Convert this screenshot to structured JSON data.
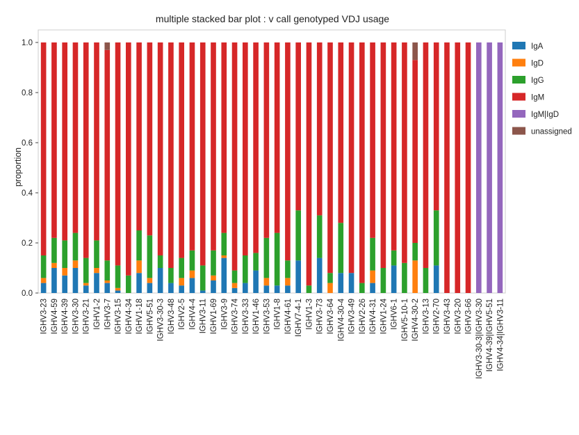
{
  "chart_data": {
    "type": "bar",
    "stacked": true,
    "title": "multiple stacked bar plot : v call genotyped VDJ usage",
    "xlabel": "",
    "ylabel": "proportion",
    "ylim": [
      0,
      1.05
    ],
    "yticks": [
      "0.0",
      "0.2",
      "0.4",
      "0.6",
      "0.8",
      "1.0"
    ],
    "grid": false,
    "legend_position": "right",
    "categories": [
      "IGHV3-23",
      "IGHV4-59",
      "IGHV4-39",
      "IGHV3-30",
      "IGHV3-21",
      "IGHV1-2",
      "IGHV3-7",
      "IGHV3-15",
      "IGHV4-34",
      "IGHV1-18",
      "IGHV5-51",
      "IGHV3-30-3",
      "IGHV3-48",
      "IGHV2-5",
      "IGHV4-4",
      "IGHV3-11",
      "IGHV1-69",
      "IGHV3-9",
      "IGHV3-74",
      "IGHV3-33",
      "IGHV1-46",
      "IGHV3-53",
      "IGHV1-8",
      "IGHV4-61",
      "IGHV7-4-1",
      "IGHV1-3",
      "IGHV3-73",
      "IGHV3-64",
      "IGHV4-30-4",
      "IGHV3-49",
      "IGHV2-26",
      "IGHV4-31",
      "IGHV1-24",
      "IGHV6-1",
      "IGHV5-10-1",
      "IGHV4-30-2",
      "IGHV3-13",
      "IGHV2-70",
      "IGHV3-43",
      "IGHV3-20",
      "IGHV3-66",
      "IGHV3-30-3|IGHV3-30",
      "IGHV4-39|IGHV5-51",
      "IGHV4-34|IGHV3-11"
    ],
    "series": [
      {
        "name": "IgA",
        "color": "#1f77b4",
        "values": [
          0.04,
          0.1,
          0.07,
          0.1,
          0.03,
          0.08,
          0.04,
          0.01,
          0.0,
          0.08,
          0.04,
          0.1,
          0.04,
          0.03,
          0.06,
          0.01,
          0.05,
          0.14,
          0.02,
          0.04,
          0.09,
          0.03,
          0.03,
          0.03,
          0.13,
          0.0,
          0.14,
          0.0,
          0.08,
          0.08,
          0.0,
          0.04,
          0.0,
          0.11,
          0.0,
          0.0,
          0.0,
          0.11,
          0.0,
          0.0,
          0.0,
          0.0,
          0.0,
          0.0
        ]
      },
      {
        "name": "IgD",
        "color": "#ff7f0e",
        "values": [
          0.02,
          0.02,
          0.03,
          0.03,
          0.01,
          0.02,
          0.01,
          0.01,
          0.0,
          0.05,
          0.02,
          0.0,
          0.0,
          0.03,
          0.03,
          0.0,
          0.02,
          0.01,
          0.02,
          0.0,
          0.0,
          0.03,
          0.0,
          0.03,
          0.0,
          0.0,
          0.0,
          0.04,
          0.0,
          0.0,
          0.0,
          0.05,
          0.0,
          0.0,
          0.0,
          0.13,
          0.0,
          0.0,
          0.0,
          0.0,
          0.0,
          0.0,
          0.0,
          0.0
        ]
      },
      {
        "name": "IgG",
        "color": "#2ca02c",
        "values": [
          0.09,
          0.1,
          0.11,
          0.11,
          0.1,
          0.11,
          0.08,
          0.09,
          0.07,
          0.12,
          0.17,
          0.05,
          0.06,
          0.08,
          0.08,
          0.1,
          0.1,
          0.09,
          0.05,
          0.11,
          0.07,
          0.16,
          0.21,
          0.07,
          0.2,
          0.03,
          0.17,
          0.04,
          0.2,
          0.0,
          0.04,
          0.13,
          0.1,
          0.06,
          0.12,
          0.07,
          0.1,
          0.22,
          0.0,
          0.0,
          0.0,
          0.0,
          0.0,
          0.0
        ]
      },
      {
        "name": "IgM",
        "color": "#d62728",
        "values": [
          0.85,
          0.78,
          0.79,
          0.76,
          0.86,
          0.79,
          0.84,
          0.89,
          0.93,
          0.75,
          0.77,
          0.85,
          0.9,
          0.86,
          0.83,
          0.89,
          0.83,
          0.76,
          0.91,
          0.85,
          0.84,
          0.78,
          0.76,
          0.87,
          0.67,
          0.97,
          0.69,
          0.92,
          0.72,
          0.92,
          0.96,
          0.78,
          0.9,
          0.83,
          0.88,
          0.73,
          0.9,
          0.67,
          1.0,
          1.0,
          1.0,
          0.0,
          0.0,
          0.0
        ]
      },
      {
        "name": "IgM|IgD",
        "color": "#9467bd",
        "values": [
          0,
          0,
          0,
          0,
          0,
          0,
          0,
          0,
          0,
          0,
          0,
          0,
          0,
          0,
          0,
          0,
          0,
          0,
          0,
          0,
          0,
          0,
          0,
          0,
          0,
          0,
          0,
          0,
          0,
          0,
          0,
          0,
          0,
          0,
          0,
          0,
          0,
          0,
          0,
          0,
          0,
          1.0,
          1.0,
          1.0
        ]
      },
      {
        "name": "unassigned",
        "color": "#8c564b",
        "values": [
          0,
          0,
          0,
          0,
          0,
          0,
          0.03,
          0,
          0,
          0,
          0,
          0,
          0,
          0,
          0,
          0,
          0,
          0,
          0,
          0,
          0,
          0,
          0,
          0,
          0,
          0,
          0,
          0,
          0,
          0,
          0,
          0,
          0,
          0,
          0,
          0.07,
          0,
          0,
          0,
          0,
          0,
          0,
          0,
          0
        ]
      }
    ]
  }
}
